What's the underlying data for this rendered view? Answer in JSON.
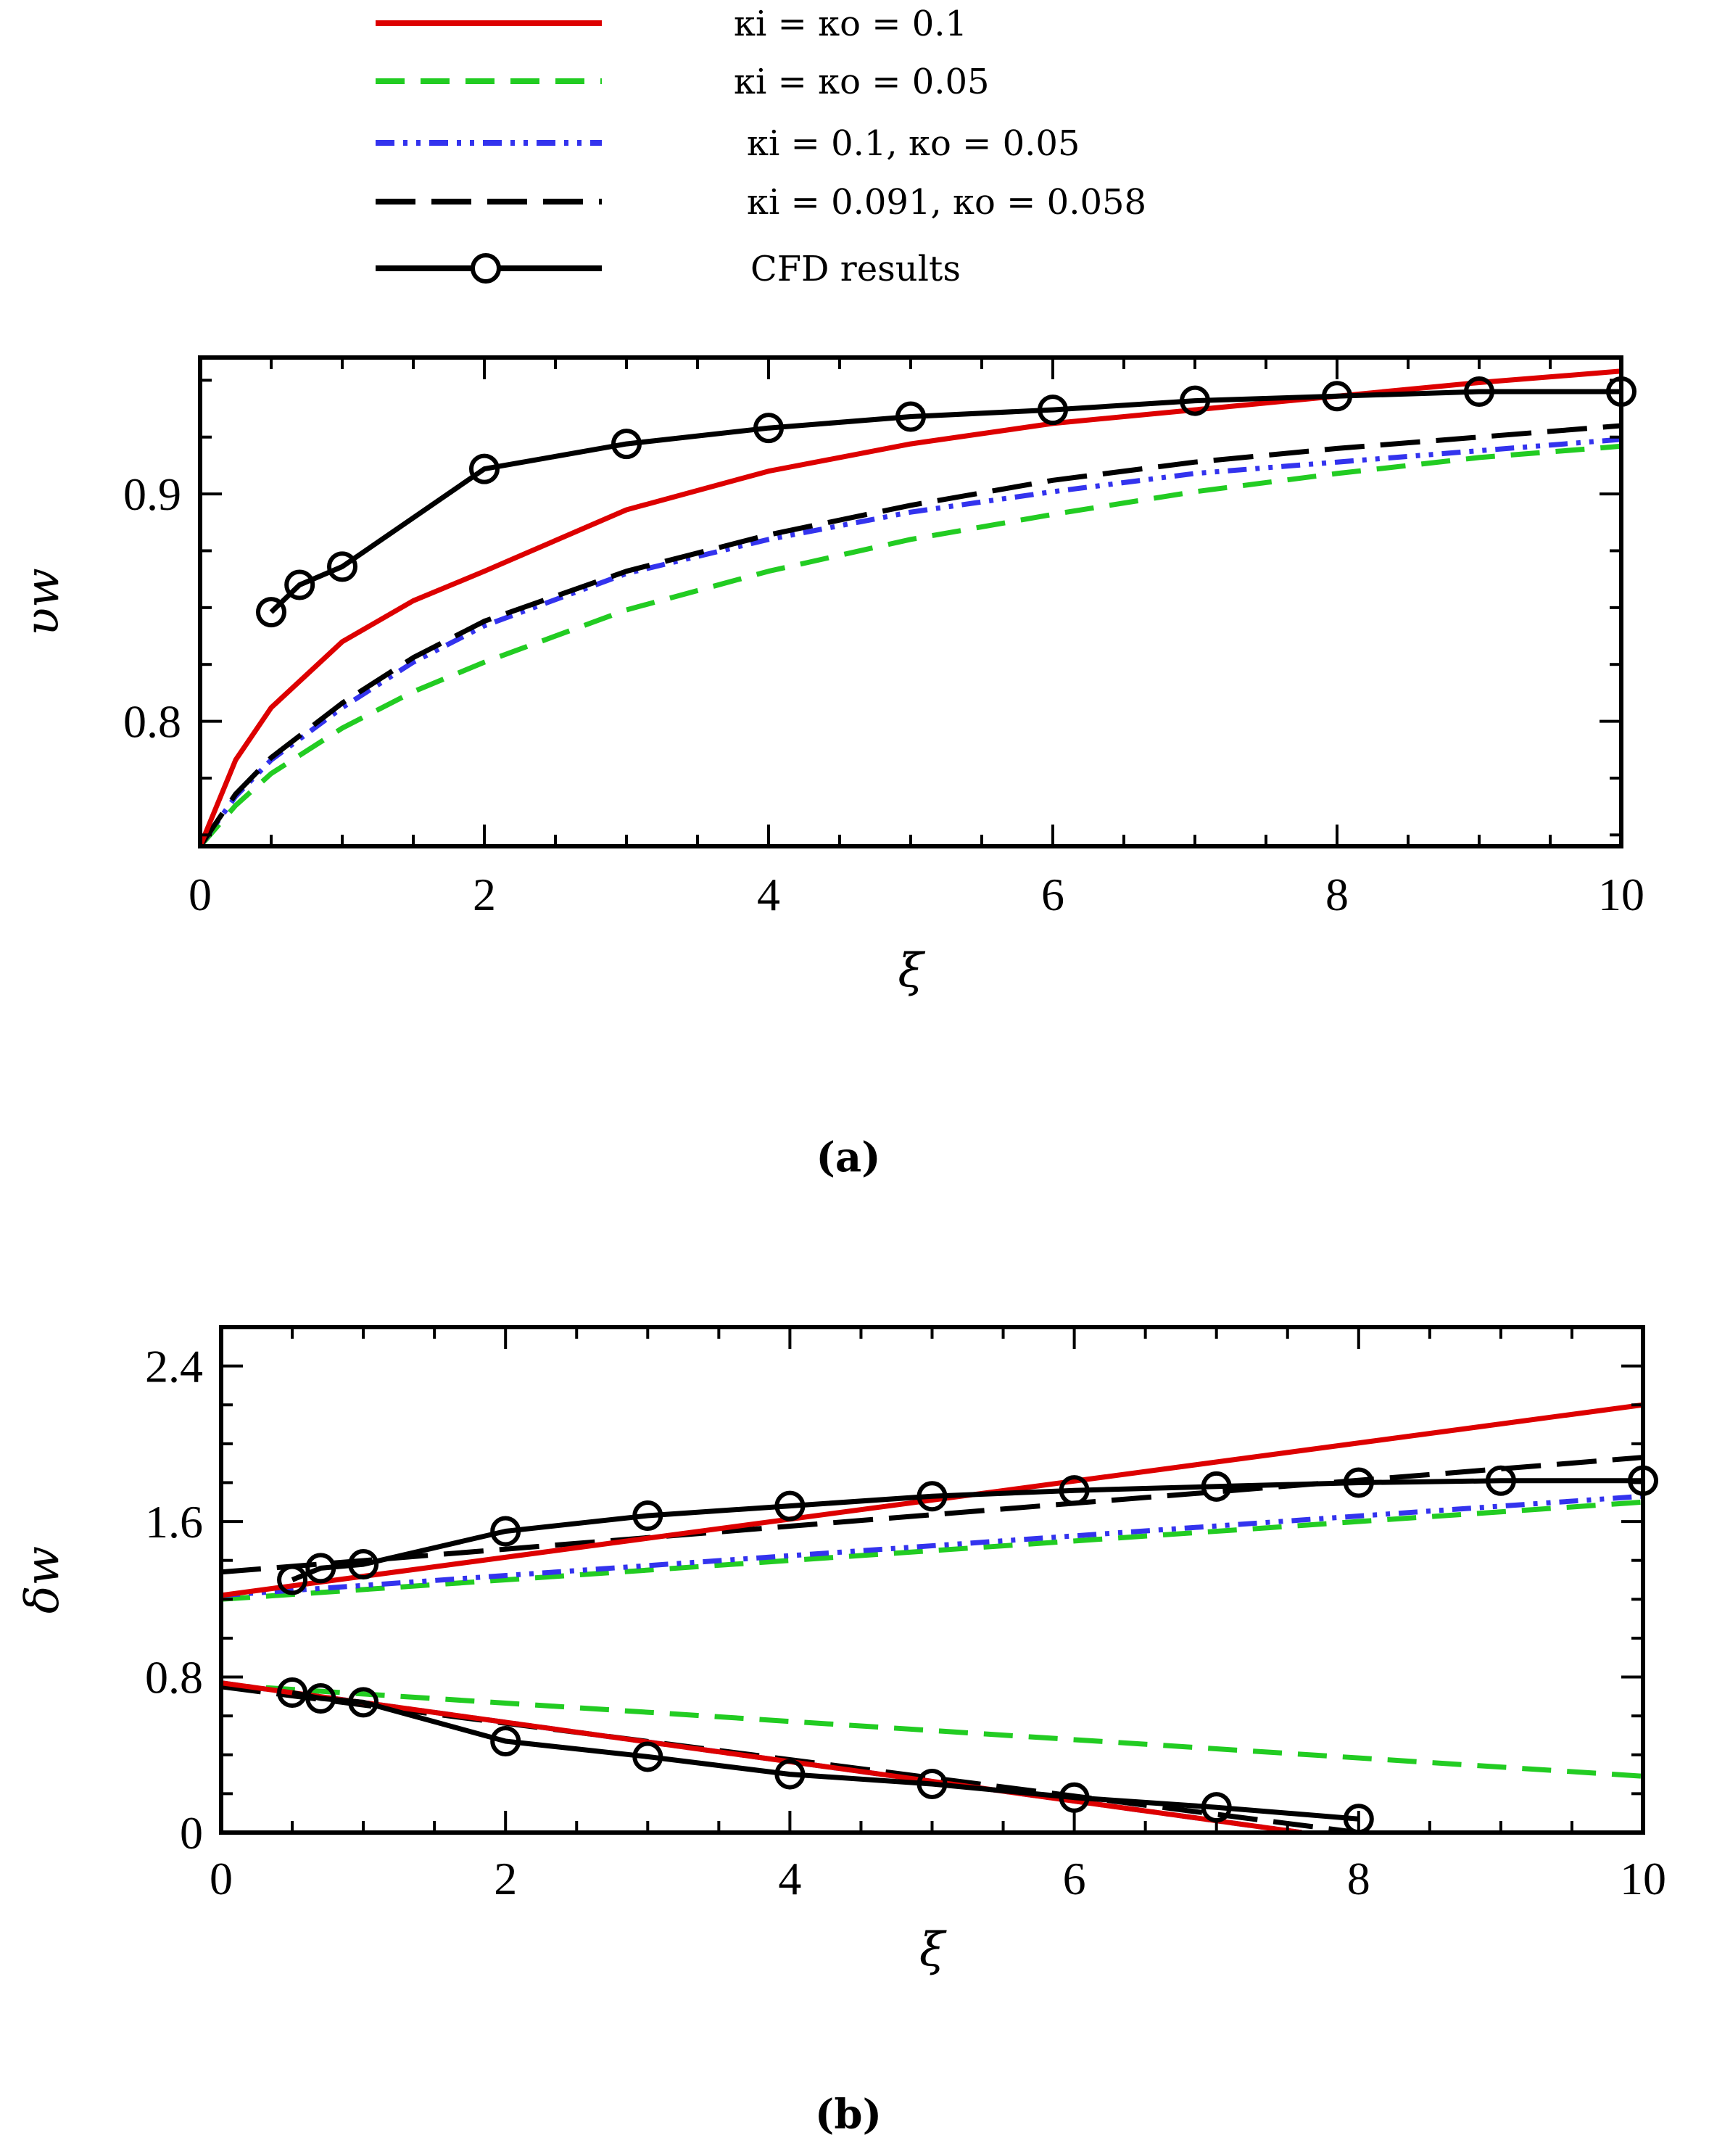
{
  "legend": {
    "entries": [
      {
        "key": "k01",
        "label": "κi = κo = 0.1",
        "color": "#dd0000",
        "dash": "solid",
        "markers": false
      },
      {
        "key": "k005",
        "label": "κi = κo = 0.05",
        "color": "#22cc22",
        "dash": "dashed",
        "markers": false
      },
      {
        "key": "k01_005",
        "label": "κi = 0.1, κo = 0.05",
        "color": "#3333ee",
        "dash": "dashdotdot",
        "markers": false
      },
      {
        "key": "k0091_0058",
        "label": "κi = 0.091, κo = 0.058",
        "color": "#000000",
        "dash": "longdash",
        "markers": false
      },
      {
        "key": "cfd",
        "label": "CFD results",
        "color": "#000000",
        "dash": "solid",
        "markers": true
      }
    ]
  },
  "chart_data": [
    {
      "type": "line",
      "panel": "(a)",
      "xlabel": "ξ",
      "ylabel": "υw",
      "xlim": [
        0,
        10
      ],
      "ylim": [
        0.745,
        0.96
      ],
      "xticks": [
        "0",
        "2",
        "4",
        "6",
        "8",
        "10"
      ],
      "yticks": [
        "0.8",
        "0.9"
      ],
      "series": [
        {
          "key": "k01",
          "x": [
            0,
            0.25,
            0.5,
            1,
            1.5,
            2,
            3,
            4,
            5,
            6,
            7,
            8,
            9,
            10
          ],
          "y": [
            0.745,
            0.783,
            0.806,
            0.835,
            0.853,
            0.866,
            0.893,
            0.91,
            0.922,
            0.931,
            0.937,
            0.943,
            0.949,
            0.954
          ]
        },
        {
          "key": "k005",
          "x": [
            0,
            0.25,
            0.5,
            1,
            1.5,
            2,
            3,
            4,
            5,
            6,
            7,
            8,
            9,
            10
          ],
          "y": [
            0.745,
            0.763,
            0.777,
            0.797,
            0.813,
            0.826,
            0.849,
            0.866,
            0.88,
            0.891,
            0.901,
            0.909,
            0.916,
            0.921
          ]
        },
        {
          "key": "k01_005",
          "x": [
            0,
            0.25,
            0.5,
            1,
            1.5,
            2,
            3,
            4,
            5,
            6,
            7,
            8,
            9,
            10
          ],
          "y": [
            0.745,
            0.767,
            0.783,
            0.806,
            0.826,
            0.842,
            0.865,
            0.88,
            0.892,
            0.901,
            0.909,
            0.914,
            0.919,
            0.924
          ]
        },
        {
          "key": "k0091_0058",
          "x": [
            0,
            0.25,
            0.5,
            1,
            1.5,
            2,
            3,
            4,
            5,
            6,
            7,
            8,
            9,
            10
          ],
          "y": [
            0.745,
            0.768,
            0.784,
            0.808,
            0.828,
            0.844,
            0.866,
            0.882,
            0.895,
            0.906,
            0.914,
            0.92,
            0.925,
            0.93
          ]
        },
        {
          "key": "cfd",
          "x": [
            0.5,
            0.7,
            1,
            2,
            3,
            4,
            5,
            6,
            7,
            8,
            9,
            10
          ],
          "y": [
            0.848,
            0.86,
            0.868,
            0.911,
            0.922,
            0.929,
            0.934,
            0.937,
            0.941,
            0.943,
            0.945,
            0.945
          ]
        }
      ]
    },
    {
      "type": "line",
      "panel": "(b)",
      "xlabel": "ξ",
      "ylabel": "δw",
      "xlim": [
        0,
        10
      ],
      "ylim": [
        0,
        2.6
      ],
      "xticks": [
        "0",
        "2",
        "4",
        "6",
        "8",
        "10"
      ],
      "yticks": [
        "0",
        "0.8",
        "1.6",
        "2.4"
      ],
      "series": [
        {
          "key": "k01",
          "x": [
            0,
            10
          ],
          "y": [
            1.22,
            2.2
          ]
        },
        {
          "key": "k005",
          "x": [
            0,
            10
          ],
          "y": [
            1.2,
            1.7
          ]
        },
        {
          "key": "k01_005",
          "x": [
            0,
            10
          ],
          "y": [
            1.22,
            1.73
          ]
        },
        {
          "key": "k0091_0058",
          "x": [
            0,
            10
          ],
          "y": [
            1.34,
            1.93
          ]
        },
        {
          "key": "cfd",
          "x": [
            0.5,
            0.7,
            1,
            2,
            3,
            4,
            5,
            6,
            7,
            8,
            9,
            10
          ],
          "y": [
            1.3,
            1.36,
            1.38,
            1.55,
            1.63,
            1.68,
            1.73,
            1.76,
            1.78,
            1.8,
            1.81,
            1.81
          ]
        },
        {
          "key": "k01",
          "x": [
            0,
            7.6
          ],
          "y": [
            0.77,
            0.0
          ]
        },
        {
          "key": "k005",
          "x": [
            0,
            10
          ],
          "y": [
            0.76,
            0.29
          ]
        },
        {
          "key": "k01_005",
          "x": [
            0,
            7.6
          ],
          "y": [
            0.77,
            0.0
          ]
        },
        {
          "key": "k0091_0058",
          "x": [
            0,
            8.0
          ],
          "y": [
            0.75,
            0.0
          ]
        },
        {
          "key": "cfd",
          "x": [
            0.5,
            0.7,
            1,
            2,
            3,
            4,
            5,
            6,
            7,
            8
          ],
          "y": [
            0.72,
            0.69,
            0.67,
            0.47,
            0.39,
            0.3,
            0.25,
            0.18,
            0.13,
            0.07
          ]
        }
      ]
    }
  ]
}
